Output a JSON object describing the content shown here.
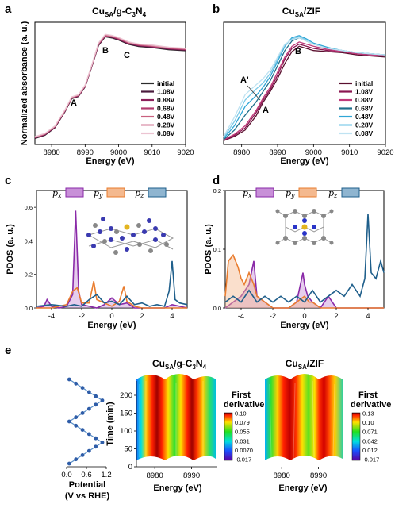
{
  "chart_data": [
    {
      "panel": "a",
      "type": "line",
      "title": "Cu",
      "title_sub": "SA",
      "title_rest": "/g-C",
      "title_sub2": "3",
      "title_rest2": "N",
      "title_sub3": "4",
      "xlabel": "Energy (eV)",
      "ylabel": "Normalized absorbance (a. u.)",
      "xlim": [
        8975,
        9020
      ],
      "xticks": [
        "8980",
        "8990",
        "9000",
        "9010",
        "9020"
      ],
      "annotations": [
        {
          "text": "A",
          "x": 8985
        },
        {
          "text": "B",
          "x": 8995
        },
        {
          "text": "C",
          "x": 9000.5
        }
      ],
      "series": [
        {
          "name": "initial",
          "color": "#2b2b2b"
        },
        {
          "name": "1.08V",
          "color": "#4a1a3c"
        },
        {
          "name": "0.88V",
          "color": "#8b1f5a"
        },
        {
          "name": "0.68V",
          "color": "#b23a6e"
        },
        {
          "name": "0.48V",
          "color": "#c9607f"
        },
        {
          "name": "0.28V",
          "color": "#d98ea6"
        },
        {
          "name": "0.08V",
          "color": "#ecc4d2"
        }
      ],
      "x": [
        8975,
        8978,
        8981,
        8984,
        8986,
        8988,
        8990,
        8992,
        8994,
        8996,
        8998,
        9000,
        9003,
        9006,
        9010,
        9015,
        9020
      ],
      "y": [
        0.05,
        0.08,
        0.15,
        0.3,
        0.42,
        0.44,
        0.53,
        0.72,
        0.92,
        1.0,
        0.99,
        0.97,
        0.93,
        0.91,
        0.9,
        0.88,
        0.87
      ]
    },
    {
      "panel": "b",
      "type": "line",
      "title": "Cu",
      "title_sub": "SA",
      "title_rest": "/ZIF",
      "xlabel": "Energy (eV)",
      "xlim": [
        8975,
        9020
      ],
      "xticks": [
        "8980",
        "8990",
        "9000",
        "9010",
        "9020"
      ],
      "annotations": [
        {
          "text": "A'",
          "x": 8979.5
        },
        {
          "text": "A",
          "x": 8984
        },
        {
          "text": "B",
          "x": 8996
        }
      ],
      "series": [
        {
          "name": "initial",
          "color": "#5a0f2e",
          "x": [
            8975,
            8978,
            8981,
            8984,
            8986,
            8988,
            8990,
            8992,
            8994,
            8996,
            8998,
            9000,
            9004,
            9008,
            9012,
            9016,
            9020
          ],
          "y": [
            0.02,
            0.06,
            0.12,
            0.25,
            0.38,
            0.48,
            0.6,
            0.74,
            0.85,
            0.9,
            0.88,
            0.86,
            0.85,
            0.84,
            0.82,
            0.81,
            0.8
          ]
        },
        {
          "name": "1.08V",
          "color": "#8a1550",
          "x": [
            8975,
            8978,
            8981,
            8984,
            8986,
            8988,
            8990,
            8992,
            8994,
            8996,
            8998,
            9000,
            9004,
            9008,
            9012,
            9016,
            9020
          ],
          "y": [
            0.02,
            0.07,
            0.14,
            0.28,
            0.4,
            0.5,
            0.63,
            0.78,
            0.88,
            0.92,
            0.9,
            0.88,
            0.86,
            0.85,
            0.83,
            0.82,
            0.81
          ]
        },
        {
          "name": "0.88V",
          "color": "#c0397a",
          "x": [
            8975,
            8978,
            8981,
            8984,
            8986,
            8988,
            8990,
            8992,
            8994,
            8996,
            8998,
            9000,
            9004,
            9008,
            9012,
            9016,
            9020
          ],
          "y": [
            0.03,
            0.08,
            0.16,
            0.3,
            0.42,
            0.52,
            0.66,
            0.8,
            0.9,
            0.94,
            0.92,
            0.9,
            0.87,
            0.85,
            0.83,
            0.82,
            0.81
          ]
        },
        {
          "name": "0.68V",
          "color": "#1f6f8b",
          "x": [
            8975,
            8978,
            8981,
            8984,
            8986,
            8988,
            8990,
            8992,
            8994,
            8996,
            8998,
            9000,
            9004,
            9008,
            9012,
            9016,
            9020
          ],
          "y": [
            0.03,
            0.12,
            0.26,
            0.38,
            0.48,
            0.58,
            0.72,
            0.86,
            0.95,
            0.98,
            0.95,
            0.92,
            0.88,
            0.86,
            0.84,
            0.83,
            0.82
          ]
        },
        {
          "name": "0.48V",
          "color": "#2fa6d6",
          "x": [
            8975,
            8978,
            8981,
            8984,
            8986,
            8988,
            8990,
            8992,
            8994,
            8996,
            8998,
            9000,
            9004,
            9008,
            9012,
            9016,
            9020
          ],
          "y": [
            0.04,
            0.16,
            0.34,
            0.44,
            0.52,
            0.62,
            0.76,
            0.9,
            0.98,
            1.0,
            0.97,
            0.93,
            0.89,
            0.86,
            0.84,
            0.83,
            0.82
          ]
        },
        {
          "name": "0.28V",
          "color": "#7fcbe8",
          "x": [
            8975,
            8978,
            8981,
            8984,
            8986,
            8988,
            8990,
            8992,
            8994,
            8996,
            8998,
            9000,
            9004,
            9008,
            9012,
            9016,
            9020
          ],
          "y": [
            0.05,
            0.2,
            0.4,
            0.5,
            0.56,
            0.65,
            0.78,
            0.91,
            0.97,
            0.99,
            0.96,
            0.92,
            0.88,
            0.86,
            0.84,
            0.83,
            0.82
          ]
        },
        {
          "name": "0.08V",
          "color": "#bfe3f2",
          "x": [
            8975,
            8978,
            8981,
            8984,
            8986,
            8988,
            8990,
            8992,
            8994,
            8996,
            8998,
            9000,
            9004,
            9008,
            9012,
            9016,
            9020
          ],
          "y": [
            0.06,
            0.24,
            0.45,
            0.54,
            0.6,
            0.68,
            0.8,
            0.92,
            0.96,
            0.98,
            0.95,
            0.92,
            0.88,
            0.86,
            0.84,
            0.83,
            0.82
          ]
        }
      ]
    },
    {
      "panel": "c",
      "type": "line",
      "xlabel": "Energy (eV)",
      "ylabel": "PDOS (a. u.)",
      "xlim": [
        -5,
        5
      ],
      "ylim": [
        0,
        0.7
      ],
      "xticks": [
        "-4",
        "-2",
        "0",
        "2",
        "4"
      ],
      "yticks": [
        "0.0",
        "0.2",
        "0.4",
        "0.6"
      ],
      "legend": [
        "p",
        "p",
        "p"
      ],
      "legend_sub": [
        "x",
        "y",
        "z"
      ],
      "series": [
        {
          "name": "px",
          "color": "#8a2aa8",
          "x": [
            -5,
            -4.5,
            -4.3,
            -4,
            -3.5,
            -3,
            -2.6,
            -2.4,
            -2.2,
            -2,
            -1.5,
            -1,
            -0.5,
            0,
            0.5,
            1,
            1.5,
            2,
            2.5,
            3,
            3.5,
            4,
            4.5,
            5
          ],
          "y": [
            0,
            0.01,
            0.05,
            0.01,
            0,
            0.01,
            0.08,
            0.58,
            0.1,
            0.02,
            0.01,
            0,
            0.02,
            0.06,
            0.02,
            0.03,
            0,
            0,
            0,
            0,
            0,
            0.02,
            0.01,
            0
          ]
        },
        {
          "name": "py",
          "color": "#e97c2e",
          "x": [
            -5,
            -4,
            -3.5,
            -3,
            -2.6,
            -2.3,
            -2,
            -1.5,
            -1.2,
            -1,
            -0.5,
            0,
            0.5,
            0.8,
            1,
            1.5,
            2,
            3,
            4,
            5
          ],
          "y": [
            0,
            0,
            0.01,
            0.02,
            0.1,
            0.12,
            0.03,
            0.03,
            0.16,
            0.05,
            0.03,
            0.01,
            0.04,
            0.13,
            0.04,
            0.01,
            0,
            0,
            0,
            0
          ]
        },
        {
          "name": "pz",
          "color": "#1f5f8b",
          "x": [
            -5,
            -4,
            -3,
            -2.5,
            -2,
            -1.5,
            -1,
            -0.5,
            0,
            0.5,
            1,
            1.5,
            2,
            2.5,
            3,
            3.5,
            3.8,
            4,
            4.2,
            4.5,
            5
          ],
          "y": [
            0.01,
            0.02,
            0.01,
            0.02,
            0.01,
            0.05,
            0.08,
            0.03,
            0.04,
            0.02,
            0.07,
            0.02,
            0.03,
            0.01,
            0.02,
            0.01,
            0.1,
            0.28,
            0.05,
            0.03,
            0.02
          ]
        }
      ]
    },
    {
      "panel": "d",
      "type": "line",
      "xlabel": "Energy (eV)",
      "ylabel": "PDOS (a. u.)",
      "xlim": [
        -5,
        5
      ],
      "ylim": [
        0,
        0.2
      ],
      "xticks": [
        "-4",
        "-2",
        "0",
        "2",
        "4"
      ],
      "yticks": [
        "0.0",
        "0.1",
        "0.2"
      ],
      "legend": [
        "p",
        "p",
        "p"
      ],
      "legend_sub": [
        "x",
        "y",
        "z"
      ],
      "series": [
        {
          "name": "px",
          "color": "#8a2aa8",
          "x": [
            -5,
            -4.5,
            -4,
            -3.5,
            -3.2,
            -3,
            -2.5,
            -2,
            -1,
            -0.5,
            -0.1,
            0,
            0.2,
            0.5,
            1,
            1.5,
            2,
            3,
            4,
            5
          ],
          "y": [
            0,
            0.01,
            0.02,
            0.04,
            0.08,
            0.02,
            0.01,
            0,
            0,
            0.01,
            0.06,
            0.04,
            0.02,
            0.01,
            0,
            0.02,
            0,
            0,
            0,
            0
          ]
        },
        {
          "name": "py",
          "color": "#e97c2e",
          "x": [
            -5,
            -4.8,
            -4.5,
            -4.2,
            -4,
            -3.8,
            -3.5,
            -3.2,
            -3,
            -2.5,
            -2,
            -1,
            -0.5,
            0,
            0.3,
            0.5,
            1,
            2,
            3,
            4,
            5
          ],
          "y": [
            0.02,
            0.08,
            0.09,
            0.07,
            0.05,
            0.04,
            0.06,
            0.04,
            0.02,
            0.01,
            0,
            0,
            0.01,
            0.02,
            0.01,
            0.01,
            0,
            0,
            0,
            0,
            0
          ]
        },
        {
          "name": "pz",
          "color": "#1f5f8b",
          "x": [
            -5,
            -4.5,
            -4,
            -3.5,
            -3,
            -2.5,
            -2,
            -1.5,
            -1,
            -0.5,
            0,
            0.5,
            1,
            1.5,
            2,
            2.5,
            3,
            3.5,
            3.8,
            4,
            4.2,
            4.5,
            4.8,
            5
          ],
          "y": [
            0.01,
            0.02,
            0.01,
            0.03,
            0.01,
            0.02,
            0.01,
            0.02,
            0.01,
            0.02,
            0.01,
            0.03,
            0.01,
            0.02,
            0.03,
            0.02,
            0.04,
            0.02,
            0.05,
            0.16,
            0.06,
            0.05,
            0.08,
            0.06
          ]
        }
      ]
    },
    {
      "panel": "e",
      "type": "line",
      "xlabel": "Potential",
      "xlabel2": "(V vs RHE)",
      "xticks": [
        "0.0",
        "0.6",
        "1.2"
      ],
      "xlim": [
        0,
        1.2
      ],
      "potential": [
        0.08,
        0.28,
        0.48,
        0.68,
        0.88,
        1.08,
        0.88,
        0.68,
        0.48,
        0.28,
        0.08,
        0.28,
        0.48,
        0.68,
        0.88,
        1.08,
        0.88,
        0.68,
        0.48,
        0.28,
        0.08
      ]
    },
    {
      "panel": "e",
      "type": "heatmap",
      "title": "Cu",
      "title_sub": "SA",
      "title_rest": "/g-C",
      "title_sub2": "3",
      "title_rest2": "N",
      "title_sub3": "4",
      "xlabel": "Energy (eV)",
      "ylabel": "Time (min)",
      "xticks": [
        "8980",
        "8990"
      ],
      "xlim": [
        8975,
        8997
      ],
      "yticks": [
        "0",
        "50",
        "100",
        "150",
        "200"
      ],
      "ylim": [
        0,
        240
      ],
      "colorbar_label": "First",
      "colorbar_label2": "derivative",
      "colorbar_ticks": [
        "0.10",
        "0.079",
        "0.055",
        "0.031",
        "0.0070",
        "-0.017"
      ]
    },
    {
      "panel": "e",
      "type": "heatmap",
      "title": "Cu",
      "title_sub": "SA",
      "title_rest": "/ZIF",
      "xlabel": "Energy (eV)",
      "xticks": [
        "8980",
        "8990"
      ],
      "xlim": [
        8975,
        8997
      ],
      "colorbar_label": "First",
      "colorbar_label2": "derivative",
      "colorbar_ticks": [
        "0.13",
        "0.10",
        "0.071",
        "0.042",
        "0.012",
        "-0.017"
      ]
    }
  ],
  "panel_labels": [
    "a",
    "b",
    "c",
    "d",
    "e"
  ]
}
